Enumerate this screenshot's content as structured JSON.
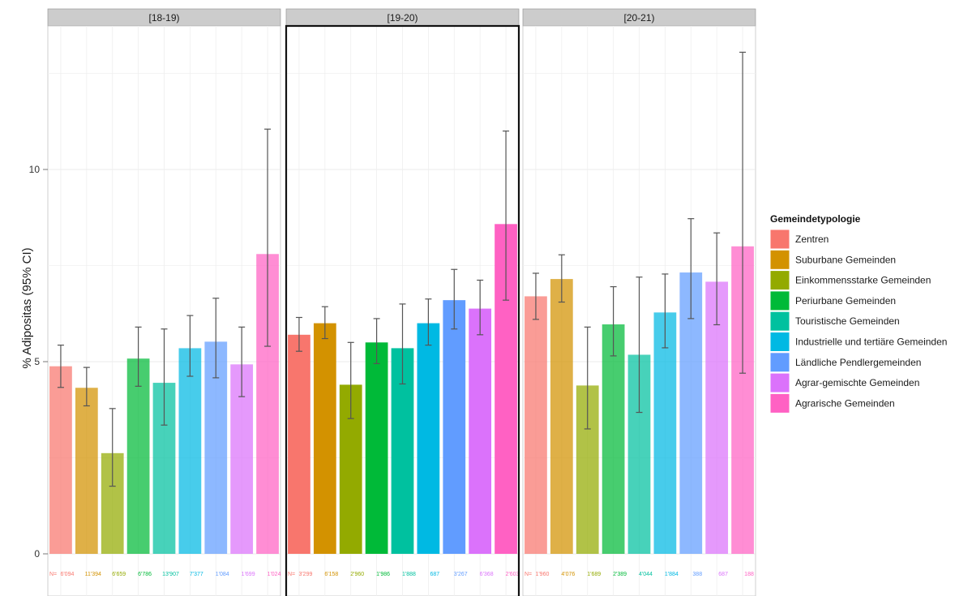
{
  "chart_data": {
    "type": "bar",
    "ylabel": "% Adipositas (95% CI)",
    "ylim": [
      0,
      13.5
    ],
    "yticks": [
      0,
      5,
      10
    ],
    "grid": true,
    "legend": {
      "title": "Gemeindetypologie",
      "position": "right",
      "entries": [
        {
          "label": "Zentren",
          "color": "#F8766D"
        },
        {
          "label": "Suburbane Gemeinden",
          "color": "#D39200"
        },
        {
          "label": "Einkommensstarke Gemeinden",
          "color": "#93AA00"
        },
        {
          "label": "Periurbane Gemeinden",
          "color": "#00BA38"
        },
        {
          "label": "Touristische Gemeinden",
          "color": "#00C19F"
        },
        {
          "label": "Industrielle und tertiäre Gemeinden",
          "color": "#00B9E3"
        },
        {
          "label": "Ländliche Pendlergemeinden",
          "color": "#619CFF"
        },
        {
          "label": "Agrar-gemischte Gemeinden",
          "color": "#DB72FB"
        },
        {
          "label": "Agrarische Gemeinden",
          "color": "#FF61C3"
        }
      ]
    },
    "panels": [
      {
        "label": "[18-19)",
        "highlighted": false,
        "values": [
          4.88,
          4.32,
          2.62,
          5.08,
          4.45,
          5.35,
          5.52,
          4.93,
          7.8
        ],
        "ci_low": [
          4.33,
          3.85,
          1.76,
          4.36,
          3.35,
          4.62,
          4.58,
          4.09,
          5.4
        ],
        "ci_high": [
          5.43,
          4.85,
          3.78,
          5.9,
          5.85,
          6.2,
          6.65,
          5.9,
          11.05
        ],
        "n_labels": [
          "N=",
          "6'094",
          "11'394",
          "6'659",
          "6'786",
          "13'907",
          "7'377",
          "1'084",
          "1'699",
          "1'024"
        ]
      },
      {
        "label": "[19-20)",
        "highlighted": true,
        "values": [
          5.7,
          6.0,
          4.4,
          5.5,
          5.35,
          6.0,
          6.6,
          6.38,
          8.58
        ],
        "ci_low": [
          5.27,
          5.6,
          3.52,
          4.95,
          4.42,
          5.43,
          5.85,
          5.7,
          6.6
        ],
        "ci_high": [
          6.15,
          6.43,
          5.5,
          6.12,
          6.5,
          6.63,
          7.4,
          7.12,
          11.0
        ],
        "n_labels": [
          "N=",
          "3'299",
          "6'158",
          "2'960",
          "1'986",
          "1'888",
          "687",
          "3'267",
          "6'368",
          "2'603"
        ]
      },
      {
        "label": "[20-21)",
        "highlighted": false,
        "values": [
          6.7,
          7.15,
          4.38,
          5.97,
          5.18,
          6.28,
          7.32,
          7.08,
          8.0
        ],
        "ci_low": [
          6.1,
          6.55,
          3.25,
          5.15,
          3.68,
          5.36,
          6.12,
          5.96,
          4.7
        ],
        "ci_high": [
          7.3,
          7.78,
          5.9,
          6.95,
          7.2,
          7.28,
          8.72,
          8.35,
          13.05
        ],
        "n_labels": [
          "N=",
          "1'960",
          "4'076",
          "1'689",
          "2'389",
          "4'044",
          "1'884",
          "388",
          "687",
          "188"
        ]
      }
    ]
  }
}
